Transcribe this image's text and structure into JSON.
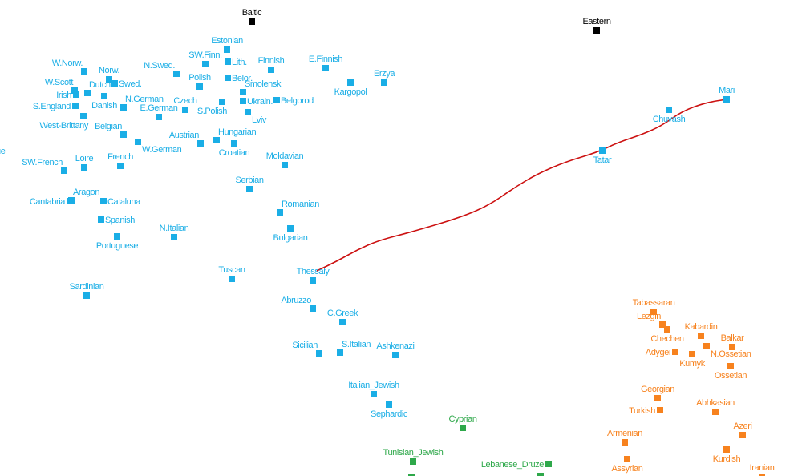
{
  "chart_data": {
    "type": "scatter",
    "title": "",
    "xlabel": "",
    "ylabel": "",
    "xlim": [
      0,
      100
    ],
    "ylim": [
      0,
      59.4
    ],
    "grid": false,
    "colors": {
      "europe": "#1aaee6",
      "caucasus": "#f7821e",
      "levant": "#2ea84a",
      "reference": "#000000",
      "line": "#cc1111"
    },
    "points": [
      {
        "name": "Baltic",
        "x": 31.4,
        "y": 56.7,
        "group": "reference",
        "pos": "top"
      },
      {
        "name": "Eastern",
        "x": 74.4,
        "y": 55.6,
        "group": "reference",
        "pos": "top"
      },
      {
        "name": "Estonian",
        "x": 28.3,
        "y": 53.2,
        "group": "europe",
        "pos": "top"
      },
      {
        "name": "SW.Finn.",
        "x": 25.6,
        "y": 51.4,
        "group": "europe",
        "pos": "top"
      },
      {
        "name": "Lith.",
        "x": 28.4,
        "y": 51.7,
        "group": "europe",
        "pos": "right"
      },
      {
        "name": "Finnish",
        "x": 33.8,
        "y": 50.7,
        "group": "europe",
        "pos": "top"
      },
      {
        "name": "E.Finnish",
        "x": 40.6,
        "y": 50.9,
        "group": "europe",
        "pos": "top"
      },
      {
        "name": "W.Norw.",
        "x": 10.5,
        "y": 50.5,
        "group": "europe",
        "pos": "topleft"
      },
      {
        "name": "N.Swed.",
        "x": 22.0,
        "y": 50.2,
        "group": "europe",
        "pos": "topleft"
      },
      {
        "name": "Norw.",
        "x": 13.6,
        "y": 49.5,
        "group": "europe",
        "pos": "top"
      },
      {
        "name": "Swed.",
        "x": 14.3,
        "y": 49.0,
        "group": "europe",
        "pos": "right"
      },
      {
        "name": "Polish",
        "x": 24.9,
        "y": 48.6,
        "group": "europe",
        "pos": "top"
      },
      {
        "name": "Belor.",
        "x": 28.4,
        "y": 49.7,
        "group": "europe",
        "pos": "right"
      },
      {
        "name": "Kargopol",
        "x": 43.7,
        "y": 49.1,
        "group": "europe",
        "pos": "bottom"
      },
      {
        "name": "Erzya",
        "x": 47.9,
        "y": 49.1,
        "group": "europe",
        "pos": "top"
      },
      {
        "name": "W.Scott",
        "x": 9.3,
        "y": 48.1,
        "group": "europe",
        "pos": "topleft"
      },
      {
        "name": "Irish",
        "x": 9.5,
        "y": 47.6,
        "group": "europe",
        "pos": "left"
      },
      {
        "name": "Dutch",
        "x": 10.9,
        "y": 47.8,
        "group": "europe",
        "pos": "topright"
      },
      {
        "name": "Danish",
        "x": 13.0,
        "y": 47.4,
        "group": "europe",
        "pos": "bottom"
      },
      {
        "name": "N.German",
        "x": 15.4,
        "y": 46.0,
        "group": "europe",
        "pos": "topright"
      },
      {
        "name": "Smolensk",
        "x": 30.3,
        "y": 47.9,
        "group": "europe",
        "pos": "topright"
      },
      {
        "name": "Ukrain.",
        "x": 30.3,
        "y": 46.8,
        "group": "europe",
        "pos": "right"
      },
      {
        "name": "Belgorod",
        "x": 34.5,
        "y": 46.9,
        "group": "europe",
        "pos": "right"
      },
      {
        "name": "Czech",
        "x": 23.1,
        "y": 45.7,
        "group": "europe",
        "pos": "top"
      },
      {
        "name": "S.Polish",
        "x": 27.7,
        "y": 46.7,
        "group": "europe",
        "pos": "bottomleft"
      },
      {
        "name": "S.England",
        "x": 9.4,
        "y": 46.2,
        "group": "europe",
        "pos": "left"
      },
      {
        "name": "E.German",
        "x": 19.8,
        "y": 44.8,
        "group": "europe",
        "pos": "top"
      },
      {
        "name": "Lviv",
        "x": 30.9,
        "y": 45.4,
        "group": "europe",
        "pos": "bottomright"
      },
      {
        "name": "West-Brittany",
        "x": 10.4,
        "y": 44.9,
        "group": "europe",
        "pos": "bottomleft"
      },
      {
        "name": "Belgian",
        "x": 15.4,
        "y": 42.6,
        "group": "europe",
        "pos": "topleft"
      },
      {
        "name": "W.German",
        "x": 17.2,
        "y": 41.7,
        "group": "europe",
        "pos": "bottomright"
      },
      {
        "name": "Austrian",
        "x": 25.0,
        "y": 41.5,
        "group": "europe",
        "pos": "topleft"
      },
      {
        "name": "Hungarian",
        "x": 27.0,
        "y": 41.9,
        "group": "europe",
        "pos": "topright"
      },
      {
        "name": "Croatian",
        "x": 29.2,
        "y": 41.5,
        "group": "europe",
        "pos": "bottom"
      },
      {
        "name": "Moldavian",
        "x": 35.5,
        "y": 38.8,
        "group": "europe",
        "pos": "top"
      },
      {
        "name": "Tatar",
        "x": 75.1,
        "y": 40.6,
        "group": "europe",
        "pos": "bottom"
      },
      {
        "name": "Chuvash",
        "x": 83.4,
        "y": 45.7,
        "group": "europe",
        "pos": "bottom"
      },
      {
        "name": "Mari",
        "x": 90.6,
        "y": 47.0,
        "group": "europe",
        "pos": "top"
      },
      {
        "name": "SW.French",
        "x": 8.0,
        "y": 38.1,
        "group": "europe",
        "pos": "topleft"
      },
      {
        "name": "Loire",
        "x": 10.5,
        "y": 38.5,
        "group": "europe",
        "pos": "top"
      },
      {
        "name": "French",
        "x": 15.0,
        "y": 38.7,
        "group": "europe",
        "pos": "top"
      },
      {
        "name": "Serbian",
        "x": 31.1,
        "y": 35.8,
        "group": "europe",
        "pos": "top"
      },
      {
        "name": "Aragon",
        "x": 8.9,
        "y": 34.4,
        "group": "europe",
        "pos": "topright"
      },
      {
        "name": "Cantabria",
        "x": 8.7,
        "y": 34.3,
        "group": "europe",
        "pos": "left"
      },
      {
        "name": "Cataluna",
        "x": 12.9,
        "y": 34.3,
        "group": "europe",
        "pos": "right"
      },
      {
        "name": "Romanian",
        "x": 34.9,
        "y": 32.9,
        "group": "europe",
        "pos": "topright"
      },
      {
        "name": "Spanish",
        "x": 12.6,
        "y": 32.0,
        "group": "europe",
        "pos": "right"
      },
      {
        "name": "Bulgarian",
        "x": 36.2,
        "y": 30.9,
        "group": "europe",
        "pos": "bottom"
      },
      {
        "name": "N.Italian",
        "x": 21.7,
        "y": 29.8,
        "group": "europe",
        "pos": "top"
      },
      {
        "name": "Portuguese",
        "x": 14.6,
        "y": 29.9,
        "group": "europe",
        "pos": "bottom"
      },
      {
        "name": "Tuscan",
        "x": 28.9,
        "y": 24.6,
        "group": "europe",
        "pos": "top"
      },
      {
        "name": "Thessaly",
        "x": 39.0,
        "y": 24.4,
        "group": "europe",
        "pos": "top"
      },
      {
        "name": "Sardinian",
        "x": 10.8,
        "y": 22.5,
        "group": "europe",
        "pos": "top"
      },
      {
        "name": "Abruzzo",
        "x": 39.0,
        "y": 20.9,
        "group": "europe",
        "pos": "topleft"
      },
      {
        "name": "C.Greek",
        "x": 42.7,
        "y": 19.2,
        "group": "europe",
        "pos": "top"
      },
      {
        "name": "Sicilian",
        "x": 39.8,
        "y": 15.3,
        "group": "europe",
        "pos": "topleft"
      },
      {
        "name": "S.Italian",
        "x": 42.4,
        "y": 15.4,
        "group": "europe",
        "pos": "topright"
      },
      {
        "name": "Ashkenazi",
        "x": 49.3,
        "y": 15.1,
        "group": "europe",
        "pos": "top"
      },
      {
        "name": "Italian_Jewish",
        "x": 46.6,
        "y": 10.2,
        "group": "europe",
        "pos": "top"
      },
      {
        "name": "Sephardic",
        "x": 48.5,
        "y": 8.9,
        "group": "europe",
        "pos": "bottom"
      },
      {
        "name": "Cyprian",
        "x": 57.7,
        "y": 6.0,
        "group": "levant",
        "pos": "top"
      },
      {
        "name": "Tunisian_Jewish",
        "x": 51.5,
        "y": 1.8,
        "group": "levant",
        "pos": "top"
      },
      {
        "name": "Lebanese_Druze",
        "x": 68.4,
        "y": 1.5,
        "group": "levant",
        "pos": "left"
      },
      {
        "name": "Tabassaran",
        "x": 81.5,
        "y": 20.5,
        "group": "caucasus",
        "pos": "top"
      },
      {
        "name": "Lezgin",
        "x": 82.6,
        "y": 18.9,
        "group": "caucasus",
        "pos": "topleft"
      },
      {
        "name": "Chechen",
        "x": 83.2,
        "y": 18.3,
        "group": "caucasus",
        "pos": "bottom"
      },
      {
        "name": "Kabardin",
        "x": 87.4,
        "y": 17.5,
        "group": "caucasus",
        "pos": "top"
      },
      {
        "name": "Balkar",
        "x": 91.3,
        "y": 16.1,
        "group": "caucasus",
        "pos": "top"
      },
      {
        "name": "Adygei",
        "x": 84.2,
        "y": 15.5,
        "group": "caucasus",
        "pos": "left"
      },
      {
        "name": "Kumyk",
        "x": 86.3,
        "y": 15.2,
        "group": "caucasus",
        "pos": "bottom"
      },
      {
        "name": "N.Ossetian",
        "x": 88.1,
        "y": 16.2,
        "group": "caucasus",
        "pos": "bottomright"
      },
      {
        "name": "Ossetian",
        "x": 91.1,
        "y": 13.7,
        "group": "caucasus",
        "pos": "bottom"
      },
      {
        "name": "Georgian",
        "x": 82.0,
        "y": 9.7,
        "group": "caucasus",
        "pos": "top"
      },
      {
        "name": "Abhkasian",
        "x": 89.2,
        "y": 8.0,
        "group": "caucasus",
        "pos": "top"
      },
      {
        "name": "Turkish",
        "x": 82.3,
        "y": 8.2,
        "group": "caucasus",
        "pos": "left"
      },
      {
        "name": "Azeri",
        "x": 92.6,
        "y": 5.1,
        "group": "caucasus",
        "pos": "top"
      },
      {
        "name": "Armenian",
        "x": 77.9,
        "y": 4.2,
        "group": "caucasus",
        "pos": "top"
      },
      {
        "name": "Kurdish",
        "x": 90.6,
        "y": 3.3,
        "group": "caucasus",
        "pos": "bottom"
      },
      {
        "name": "Assyrian",
        "x": 78.2,
        "y": 2.1,
        "group": "caucasus",
        "pos": "bottom"
      },
      {
        "name": "Iranian",
        "x": 95.0,
        "y": -0.1,
        "group": "caucasus",
        "pos": "top"
      },
      {
        "name": "ue",
        "x": -1.0,
        "y": 40.6,
        "group": "europe",
        "pos": "right"
      }
    ],
    "unlabeled_points": [
      {
        "x": 51.3,
        "y": -0.1,
        "group": "levant"
      },
      {
        "x": 67.4,
        "y": 0.0,
        "group": "levant"
      }
    ],
    "trend_line": [
      [
        39.5,
        25.6
      ],
      [
        42.0,
        26.8
      ],
      [
        44.5,
        28.2
      ],
      [
        47.2,
        29.4
      ],
      [
        51.5,
        30.5
      ],
      [
        57.5,
        32.3
      ],
      [
        61.0,
        33.8
      ],
      [
        64.0,
        35.9
      ],
      [
        67.0,
        37.7
      ],
      [
        70.5,
        39.2
      ],
      [
        74.5,
        40.4
      ],
      [
        77.0,
        41.6
      ],
      [
        80.0,
        42.6
      ],
      [
        82.5,
        43.7
      ],
      [
        85.0,
        45.5
      ],
      [
        88.0,
        46.6
      ],
      [
        90.6,
        47.0
      ]
    ]
  }
}
